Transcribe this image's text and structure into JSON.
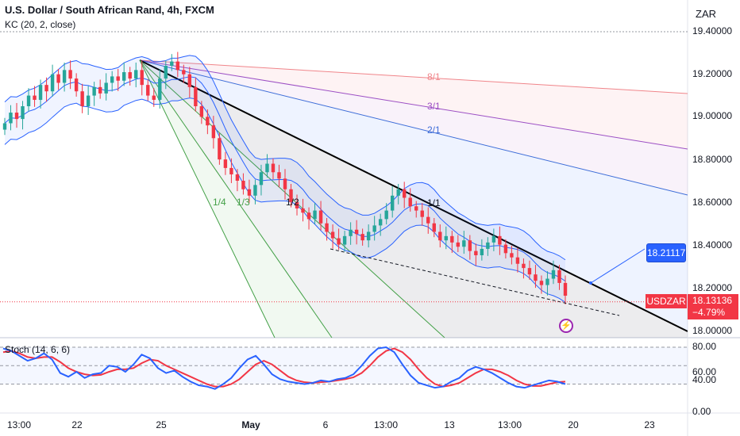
{
  "header": {
    "title": "U.S. Dollar / South African Rand, 4h, FXCM",
    "indicator": "KC (20, 2, close)",
    "currency": "ZAR"
  },
  "price_axis": [
    "19.40000",
    "19.20000",
    "19.00000",
    "18.80000",
    "18.60000",
    "18.40000",
    "18.20000",
    "18.00000"
  ],
  "stoch_axis": [
    "80.00",
    "60.00",
    "40.00",
    "0.00"
  ],
  "stoch_title": "Stoch (14, 6, 6)",
  "date_axis": [
    {
      "label": "13:00",
      "bold": false
    },
    {
      "label": "22",
      "bold": false
    },
    {
      "label": "25",
      "bold": false
    },
    {
      "label": "May",
      "bold": true
    },
    {
      "label": "6",
      "bold": false
    },
    {
      "label": "13:00",
      "bold": false
    },
    {
      "label": "13",
      "bold": false
    },
    {
      "label": "13:00",
      "bold": false
    },
    {
      "label": "20",
      "bold": false
    },
    {
      "label": "23",
      "bold": false
    }
  ],
  "fan_labels": {
    "r8": "8/1",
    "r3": "3/1",
    "r2": "2/1",
    "r1": "1/1",
    "r12": "1/2",
    "r13": "1/3",
    "r14": "1/4"
  },
  "callout": {
    "value": "18.21117"
  },
  "symbol_tag": {
    "symbol": "USDZAR",
    "price": "18.13136",
    "change": "−4.79%"
  },
  "icons": {
    "alert": "lightning-icon"
  },
  "colors": {
    "up": "#26a69a",
    "down": "#f23645",
    "kc": "#2962ff",
    "stoch_k": "#2962ff",
    "stoch_d": "#f23645"
  },
  "chart_data": {
    "type": "candlestick",
    "symbol": "USDZAR",
    "timeframe": "4h",
    "ylim": [
      17.96,
      19.45
    ],
    "last_price": 18.13136,
    "change_pct": -4.79,
    "close": [
      18.97,
      19.02,
      18.99,
      19.05,
      19.1,
      19.08,
      19.15,
      19.12,
      19.2,
      19.16,
      19.22,
      19.18,
      19.12,
      19.05,
      19.1,
      19.14,
      19.11,
      19.16,
      19.19,
      19.17,
      19.21,
      19.18,
      19.22,
      19.15,
      19.1,
      19.08,
      19.18,
      19.24,
      19.26,
      19.22,
      19.2,
      19.14,
      19.05,
      19.0,
      18.96,
      18.9,
      18.8,
      18.76,
      18.73,
      18.7,
      18.66,
      18.63,
      18.68,
      18.74,
      18.78,
      18.74,
      18.71,
      18.66,
      18.6,
      18.57,
      18.55,
      18.52,
      18.56,
      18.5,
      18.46,
      18.43,
      18.4,
      18.44,
      18.47,
      18.45,
      18.42,
      18.46,
      18.49,
      18.52,
      18.56,
      18.63,
      18.66,
      18.62,
      18.58,
      18.56,
      18.53,
      18.5,
      18.46,
      18.42,
      18.44,
      18.41,
      18.39,
      18.42,
      18.37,
      18.35,
      18.38,
      18.41,
      18.44,
      18.4,
      18.36,
      18.34,
      18.31,
      18.29,
      18.26,
      18.23,
      18.21,
      18.24,
      18.28,
      18.22,
      18.16
    ],
    "stoch_k": [
      78,
      74,
      66,
      58,
      62,
      70,
      60,
      38,
      32,
      40,
      30,
      36,
      38,
      50,
      48,
      40,
      52,
      68,
      62,
      46,
      38,
      42,
      32,
      24,
      18,
      16,
      12,
      20,
      30,
      46,
      60,
      66,
      52,
      36,
      28,
      24,
      22,
      20,
      22,
      26,
      24,
      28,
      30,
      36,
      50,
      66,
      78,
      80,
      72,
      52,
      34,
      22,
      18,
      14,
      16,
      24,
      30,
      42,
      48,
      44,
      38,
      30,
      22,
      16,
      14,
      18,
      22,
      26,
      24,
      20
    ],
    "stoch_d": [
      72,
      74,
      70,
      64,
      62,
      64,
      64,
      56,
      46,
      40,
      36,
      34,
      35,
      40,
      44,
      44,
      46,
      54,
      60,
      58,
      50,
      44,
      38,
      32,
      26,
      20,
      16,
      16,
      20,
      28,
      40,
      52,
      58,
      52,
      42,
      32,
      26,
      23,
      22,
      23,
      24,
      26,
      28,
      31,
      38,
      50,
      64,
      74,
      78,
      72,
      60,
      44,
      30,
      20,
      16,
      18,
      22,
      30,
      38,
      44,
      44,
      40,
      34,
      26,
      20,
      17,
      17,
      20,
      23,
      24
    ]
  }
}
